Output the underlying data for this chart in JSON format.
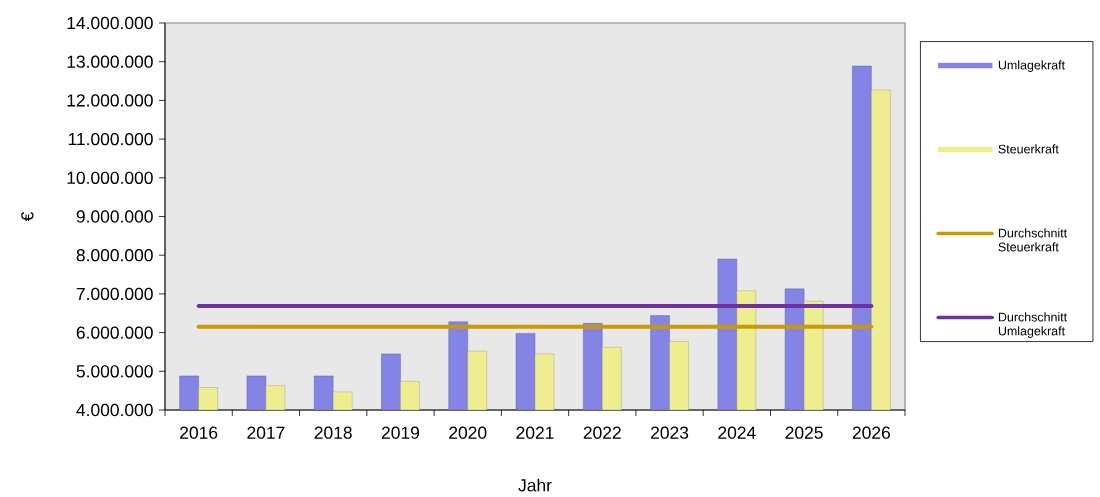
{
  "chart_data": {
    "type": "bar",
    "xlabel": "Jahr",
    "ylabel": "€",
    "categories": [
      "2016",
      "2017",
      "2018",
      "2019",
      "2020",
      "2021",
      "2022",
      "2023",
      "2024",
      "2025",
      "2026"
    ],
    "series": [
      {
        "name": "Umlagekraft",
        "color": "#8484e6",
        "values": [
          4880000,
          4880000,
          4880000,
          5450000,
          6280000,
          5980000,
          6240000,
          6440000,
          7900000,
          7130000,
          12890000
        ]
      },
      {
        "name": "Steuerkraft",
        "color": "#eeee90",
        "values": [
          4580000,
          4630000,
          4470000,
          4740000,
          5520000,
          5450000,
          5620000,
          5770000,
          7080000,
          6810000,
          12270000
        ]
      },
      {
        "name": "Durchschnitt Steuerkraft",
        "type": "line",
        "color": "#cc9900",
        "values": [
          6150000,
          6150000,
          6150000,
          6150000,
          6150000,
          6150000,
          6150000,
          6150000,
          6150000,
          6150000,
          6150000
        ]
      },
      {
        "name": "Durchschnitt Umlagekraft",
        "type": "line",
        "color": "#7030a0",
        "values": [
          6690000,
          6690000,
          6690000,
          6690000,
          6690000,
          6690000,
          6690000,
          6690000,
          6690000,
          6690000,
          6690000
        ]
      }
    ],
    "ylim": [
      4000000,
      14000000
    ],
    "yticks": [
      {
        "value": 4000000,
        "label": "4.000.000"
      },
      {
        "value": 5000000,
        "label": "5.000.000"
      },
      {
        "value": 6000000,
        "label": "6.000.000"
      },
      {
        "value": 7000000,
        "label": "7.000.000"
      },
      {
        "value": 8000000,
        "label": "8.000.000"
      },
      {
        "value": 9000000,
        "label": "9.000.000"
      },
      {
        "value": 10000000,
        "label": "10.000.000"
      },
      {
        "value": 11000000,
        "label": "11.000.000"
      },
      {
        "value": 12000000,
        "label": "12.000.000"
      },
      {
        "value": 13000000,
        "label": "13.000.000"
      },
      {
        "value": 14000000,
        "label": "14.000.000"
      }
    ],
    "legend": "right"
  }
}
